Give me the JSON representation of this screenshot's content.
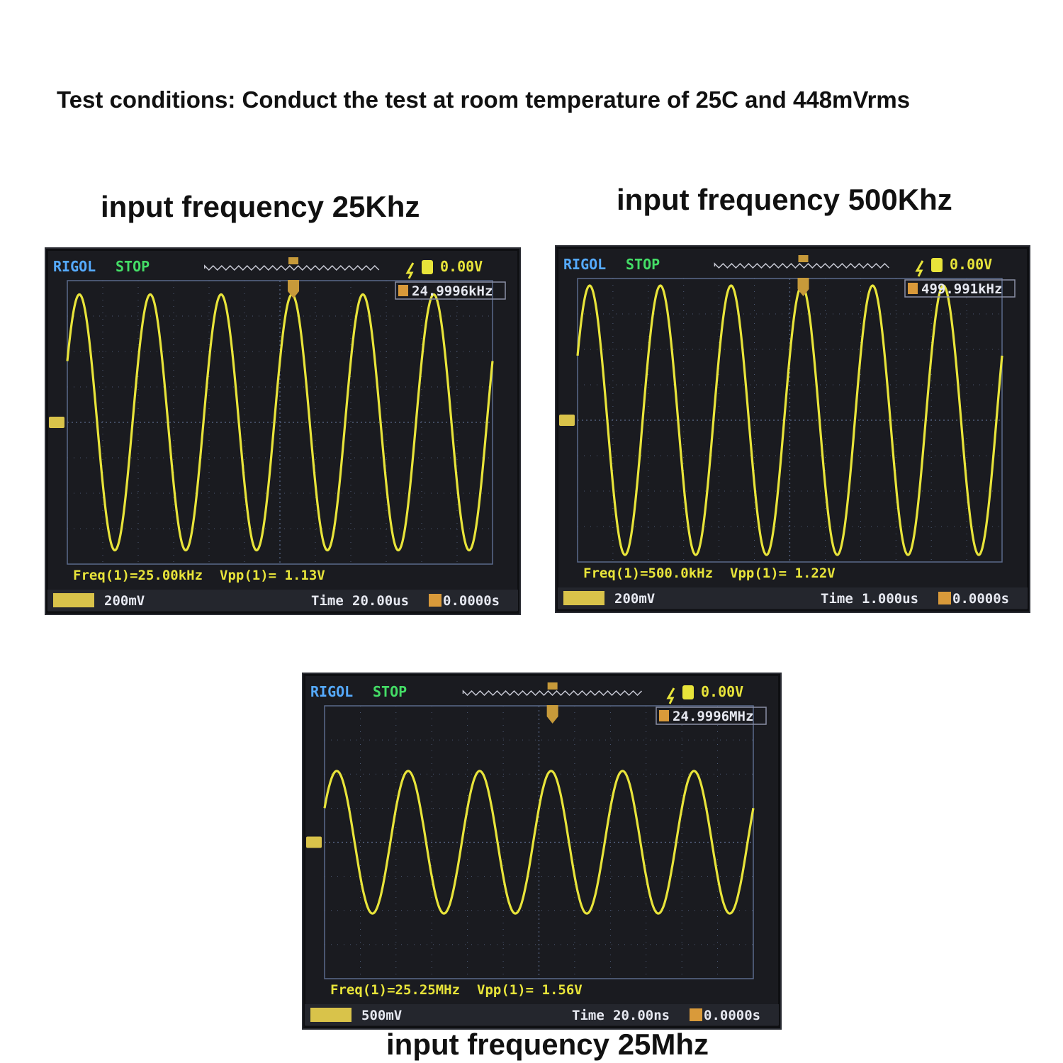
{
  "page": {
    "title": "Test conditions: Conduct the test at room temperature of 25C and 448mVrms"
  },
  "colors": {
    "trace": "#e8e43a",
    "brand": "#55aaff",
    "status": "#44dd66",
    "grid": "#5a6a8a",
    "screen": "#1a1b20"
  },
  "scopes": [
    {
      "caption": "input frequency 25Khz",
      "brand": "RIGOL",
      "status": "STOP",
      "trigger_level": "0.00V",
      "counter": "24.9996kHz",
      "measure_freq": "Freq(1)=25.00kHz",
      "measure_vpp": "Vpp(1)= 1.13V",
      "ch_scale": "200mV",
      "time_label": "Time",
      "timebase": "20.00us",
      "offset": "0.0000s",
      "cycles": 6
    },
    {
      "caption": "input frequency 500Khz",
      "brand": "RIGOL",
      "status": "STOP",
      "trigger_level": "0.00V",
      "counter": "499.991kHz",
      "measure_freq": "Freq(1)=500.0kHz",
      "measure_vpp": "Vpp(1)= 1.22V",
      "ch_scale": "200mV",
      "time_label": "Time",
      "timebase": "1.000us",
      "offset": "0.0000s",
      "cycles": 6
    },
    {
      "caption": "input frequency 25Mhz",
      "brand": "RIGOL",
      "status": "STOP",
      "trigger_level": "0.00V",
      "counter": "24.9996MHz",
      "measure_freq": "Freq(1)=25.25MHz",
      "measure_vpp": "Vpp(1)= 1.56V",
      "ch_scale": "500mV",
      "time_label": "Time",
      "timebase": "20.00ns",
      "offset": "0.0000s",
      "cycles": 6
    }
  ]
}
